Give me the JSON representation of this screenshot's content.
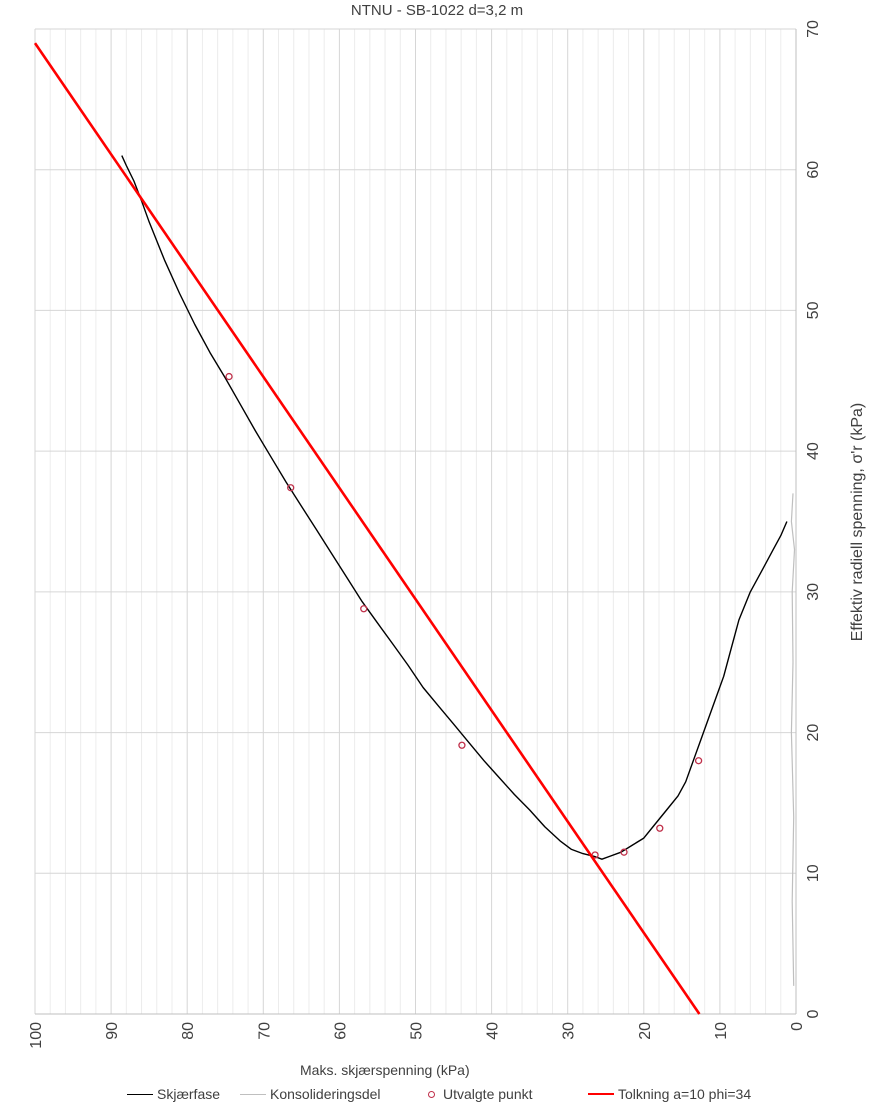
{
  "chart_data": {
    "type": "line",
    "title": "NTNU - SB-1022 d=3,2 m",
    "xlabel": "Maks. skjærspenning (kPa)",
    "ylabel": "Effektiv radiell spenning, σ'r (kPa)",
    "x_reversed": true,
    "y_axis_position": "right",
    "xlim": [
      0,
      100
    ],
    "ylim": [
      0,
      70
    ],
    "x_ticks": [
      "100",
      "90",
      "80",
      "70",
      "60",
      "50",
      "40",
      "30",
      "20",
      "10",
      "0"
    ],
    "y_ticks": [
      "0",
      "10",
      "20",
      "30",
      "40",
      "50",
      "60",
      "70"
    ],
    "grid": true,
    "legend_position": "bottom",
    "series": [
      {
        "name": "Skjærfase",
        "kind": "line",
        "color": "#000000",
        "points": [
          [
            1.2,
            35.0
          ],
          [
            2,
            34.0
          ],
          [
            3,
            33.0
          ],
          [
            4.5,
            31.5
          ],
          [
            6,
            30.0
          ],
          [
            7.5,
            28.0
          ],
          [
            8.5,
            26.0
          ],
          [
            9.5,
            24.0
          ],
          [
            10.5,
            22.5
          ],
          [
            11.5,
            21.0
          ],
          [
            12.5,
            19.5
          ],
          [
            13.5,
            18.0
          ],
          [
            14.5,
            16.5
          ],
          [
            15.5,
            15.5
          ],
          [
            17,
            14.5
          ],
          [
            18.5,
            13.5
          ],
          [
            20,
            12.5
          ],
          [
            21.5,
            12.0
          ],
          [
            23,
            11.5
          ],
          [
            24.5,
            11.2
          ],
          [
            25.5,
            11.0
          ],
          [
            26.5,
            11.2
          ],
          [
            28,
            11.4
          ],
          [
            29.5,
            11.7
          ],
          [
            31,
            12.3
          ],
          [
            33,
            13.3
          ],
          [
            35,
            14.5
          ],
          [
            37,
            15.6
          ],
          [
            39,
            16.8
          ],
          [
            41,
            18.0
          ],
          [
            43,
            19.3
          ],
          [
            45,
            20.6
          ],
          [
            47,
            21.9
          ],
          [
            49,
            23.2
          ],
          [
            51,
            24.8
          ],
          [
            53,
            26.3
          ],
          [
            55,
            27.8
          ],
          [
            57,
            29.3
          ],
          [
            59,
            31.0
          ],
          [
            61,
            32.7
          ],
          [
            63,
            34.4
          ],
          [
            65,
            36.1
          ],
          [
            67,
            37.8
          ],
          [
            69,
            39.6
          ],
          [
            71,
            41.4
          ],
          [
            73,
            43.3
          ],
          [
            75,
            45.2
          ],
          [
            77,
            47.0
          ],
          [
            79,
            49.0
          ],
          [
            81,
            51.2
          ],
          [
            83,
            53.6
          ],
          [
            85,
            56.3
          ],
          [
            86,
            57.8
          ],
          [
            87,
            59.2
          ],
          [
            88,
            60.3
          ],
          [
            88.6,
            61.0
          ]
        ]
      },
      {
        "name": "Konsolideringsdel",
        "kind": "line",
        "color": "#bfbfbf",
        "points": [
          [
            0.3,
            2.0
          ],
          [
            0.5,
            8.0
          ],
          [
            0.3,
            14.0
          ],
          [
            0.6,
            20.0
          ],
          [
            0.4,
            25.0
          ],
          [
            0.5,
            30.0
          ],
          [
            0.2,
            33.0
          ],
          [
            0.6,
            35.0
          ],
          [
            0.4,
            37.0
          ]
        ]
      },
      {
        "name": "Utvalgte punkt",
        "kind": "markers",
        "color": "#c0304a",
        "points": [
          [
            74.5,
            45.3
          ],
          [
            66.4,
            37.4
          ],
          [
            56.8,
            28.8
          ],
          [
            43.9,
            19.1
          ],
          [
            26.4,
            11.3
          ],
          [
            22.6,
            11.5
          ],
          [
            17.9,
            13.2
          ],
          [
            12.8,
            18.0
          ]
        ]
      },
      {
        "name": "Tolkning a=10 phi=34",
        "kind": "line",
        "color": "#ff0000",
        "points": [
          [
            100,
            69.0
          ],
          [
            12.7,
            0
          ]
        ]
      }
    ]
  }
}
